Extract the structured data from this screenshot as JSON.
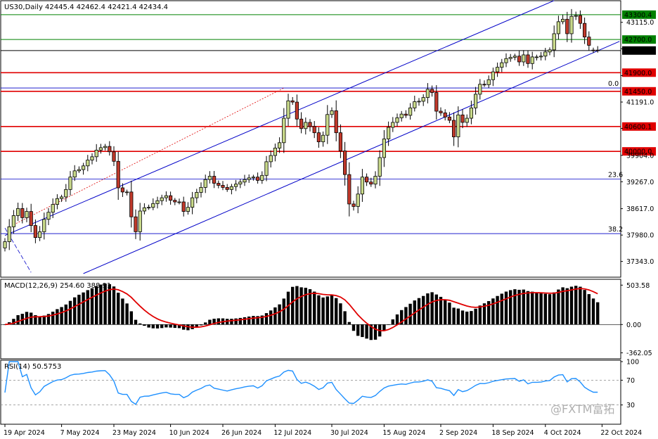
{
  "header": {
    "main_info": "US30,Daily  42445.4 42462.4 42421.4 42434.4",
    "macd_info": "MACD(12,26,9) 254.60 388.91",
    "rsi_info": "RSI(14) 50.5753"
  },
  "watermark": "@FXTM富拓",
  "colors": {
    "bull_body": "#c8d98a",
    "bear_body": "#c0392b",
    "wick": "#000000",
    "support_line": "#e00000",
    "green_line": "#008000",
    "channel": "#0000c8",
    "fib_line": "#0000c8",
    "grid": "#000000",
    "macd_hist": "#000000",
    "macd_signal": "#e00000",
    "rsi_line": "#1e90ff",
    "rsi_levels": "#888888"
  },
  "chart_data": [
    {
      "type": "candlestick",
      "symbol": "US30",
      "timeframe": "Daily",
      "last_bar": {
        "open": 42445.4,
        "high": 42462.4,
        "low": 42421.4,
        "close": 42434.4
      },
      "y_ticks": [
        43115.0,
        42478.0,
        41828.0,
        41191.0,
        40554.0,
        39904.0,
        39267.0,
        38617.0,
        37980.0,
        37343.0
      ],
      "y_tick_labels": [
        "43115.0",
        "",
        "",
        "41191.0",
        "",
        "39904.0",
        "39267.0",
        "38617.0",
        "37980.0",
        "37343.0"
      ],
      "ylim": [
        36980,
        43620
      ],
      "x_tick_labels": [
        "19 Apr 2024",
        "7 May 2024",
        "23 May 2024",
        "10 Jun 2024",
        "26 Jun 2024",
        "12 Jul 2024",
        "30 Jul 2024",
        "15 Aug 2024",
        "2 Sep 2024",
        "18 Sep 2024",
        "4 Oct 2024",
        "22 Oct 2024"
      ],
      "x_tick_index": [
        0,
        13,
        25,
        38,
        50,
        62,
        75,
        87,
        100,
        112,
        124,
        137
      ],
      "horizontal_levels": [
        {
          "value": 43300.4,
          "label": "43300.4",
          "color": "green"
        },
        {
          "value": 42700.0,
          "label": "42700.0",
          "color": "green"
        },
        {
          "value": 42434.4,
          "label": "42434.4",
          "color": "black"
        },
        {
          "value": 41900.0,
          "label": "41900.0",
          "color": "red"
        },
        {
          "value": 41450.0,
          "label": "41450.0",
          "color": "red"
        },
        {
          "value": 40600.1,
          "label": "40600.1",
          "color": "red"
        },
        {
          "value": 40000.0,
          "label": "40000.0",
          "color": "red"
        }
      ],
      "fib_levels": [
        {
          "label": "0.0",
          "value": 41530
        },
        {
          "label": "23.6",
          "value": 39330
        },
        {
          "label": "38.2",
          "value": 38015
        }
      ],
      "channel": {
        "upper": {
          "i1": 0,
          "p1": 37970,
          "i2": 126,
          "p2": 43640
        },
        "lower": {
          "i1": 18,
          "p1": 37050,
          "i2": 140,
          "p2": 42610
        }
      },
      "closes": [
        37820,
        38180,
        38450,
        38620,
        38400,
        38550,
        38210,
        37920,
        38060,
        38360,
        38530,
        38720,
        38860,
        38900,
        39080,
        39380,
        39530,
        39560,
        39650,
        39790,
        39870,
        40030,
        40090,
        40120,
        39990,
        39760,
        39120,
        39020,
        39020,
        38420,
        38060,
        38560,
        38640,
        38650,
        38740,
        38810,
        38880,
        38930,
        38820,
        38780,
        38780,
        38550,
        38650,
        38880,
        39010,
        39130,
        39320,
        39400,
        39230,
        39180,
        39130,
        39080,
        39150,
        39210,
        39260,
        39320,
        39360,
        39380,
        39300,
        39420,
        39750,
        39900,
        40080,
        40210,
        40800,
        41220,
        41190,
        40780,
        40550,
        40700,
        40600,
        40450,
        40230,
        40390,
        40890,
        40980,
        40450,
        40010,
        39440,
        38730,
        38670,
        38970,
        39380,
        39260,
        39210,
        39400,
        39850,
        40300,
        40580,
        40700,
        40810,
        40900,
        40870,
        41050,
        41200,
        41210,
        41300,
        41500,
        41420,
        40970,
        40930,
        40830,
        40750,
        40350,
        40880,
        40700,
        40800,
        41050,
        41380,
        41620,
        41610,
        41730,
        41920,
        42030,
        42140,
        42240,
        42270,
        42300,
        42160,
        42330,
        42120,
        42280,
        42280,
        42300,
        42400,
        42450,
        42840,
        43130,
        43190,
        42840,
        43260,
        43280,
        43090,
        42760,
        42560,
        42434.4,
        42434.4
      ]
    },
    {
      "type": "histogram+line",
      "name": "MACD(12,26,9)",
      "macd": 254.6,
      "signal": 388.91,
      "y_tick_labels": [
        "503.58",
        "0.00",
        "-362.05"
      ],
      "ylim": [
        -420,
        560
      ]
    },
    {
      "type": "line",
      "name": "RSI(14)",
      "value": 50.5753,
      "levels": [
        70,
        30
      ],
      "y_tick_labels": [
        "100",
        "70",
        "30"
      ],
      "ylim": [
        0,
        100
      ]
    }
  ]
}
